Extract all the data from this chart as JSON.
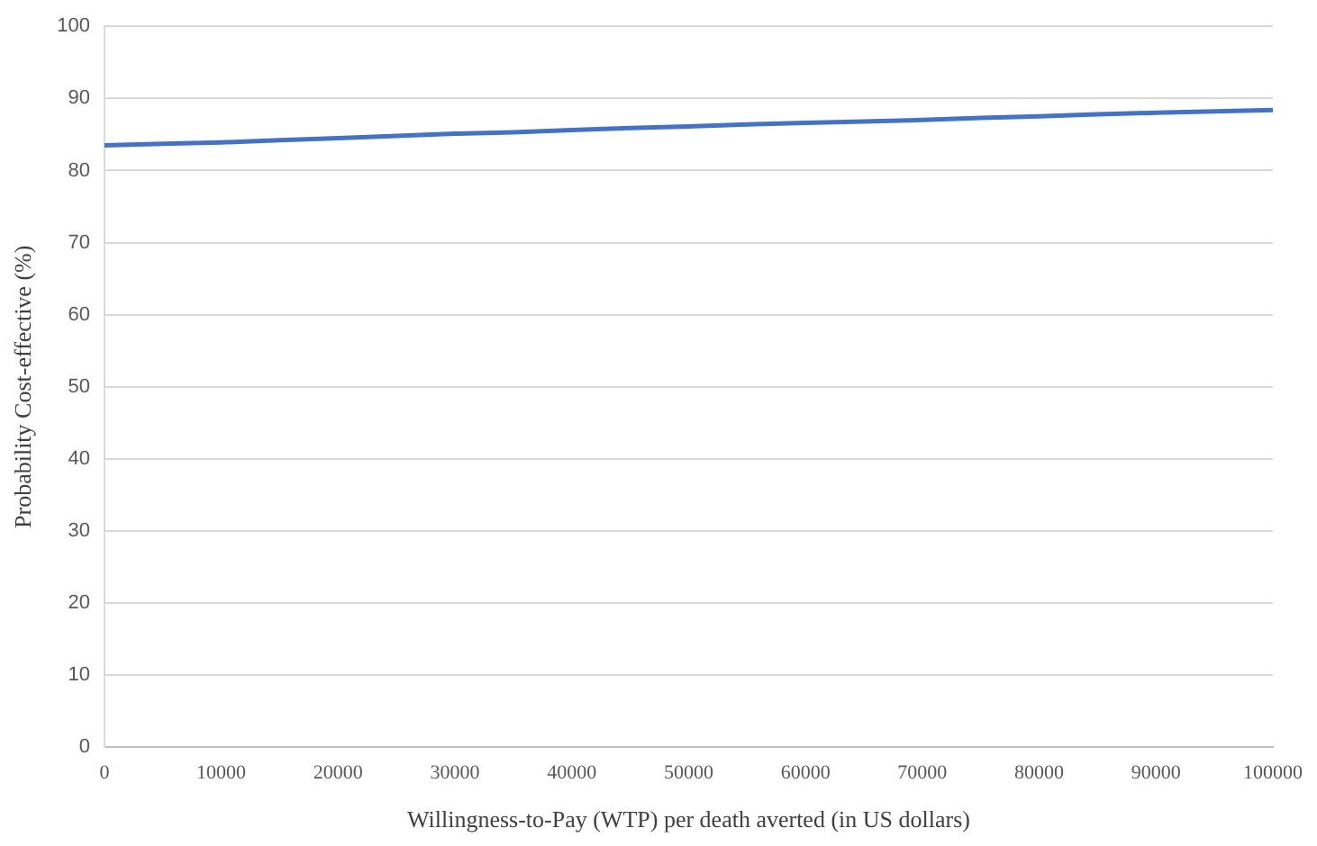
{
  "chart_data": {
    "type": "line",
    "xlabel": "Willingness-to-Pay (WTP) per death averted (in US dollars)",
    "ylabel": "Probability Cost-effective (%)",
    "x": [
      0,
      5000,
      10000,
      15000,
      20000,
      25000,
      30000,
      35000,
      40000,
      45000,
      50000,
      55000,
      60000,
      65000,
      70000,
      75000,
      80000,
      85000,
      90000,
      95000,
      100000
    ],
    "series": [
      {
        "color": "#4472c4",
        "values": [
          83.5,
          83.7,
          83.9,
          84.2,
          84.5,
          84.8,
          85.1,
          85.3,
          85.6,
          85.9,
          86.1,
          86.4,
          86.6,
          86.8,
          87.0,
          87.3,
          87.5,
          87.8,
          88.0,
          88.2,
          88.4
        ]
      }
    ],
    "xlim": [
      0,
      100000
    ],
    "xticks": [
      0,
      10000,
      20000,
      30000,
      40000,
      50000,
      60000,
      70000,
      80000,
      90000,
      100000
    ],
    "ylim": [
      0,
      100
    ],
    "yticks": [
      0,
      10,
      20,
      30,
      40,
      50,
      60,
      70,
      80,
      90,
      100
    ],
    "grid": "y",
    "legend": false,
    "marker": "none",
    "line_style": "solid"
  }
}
